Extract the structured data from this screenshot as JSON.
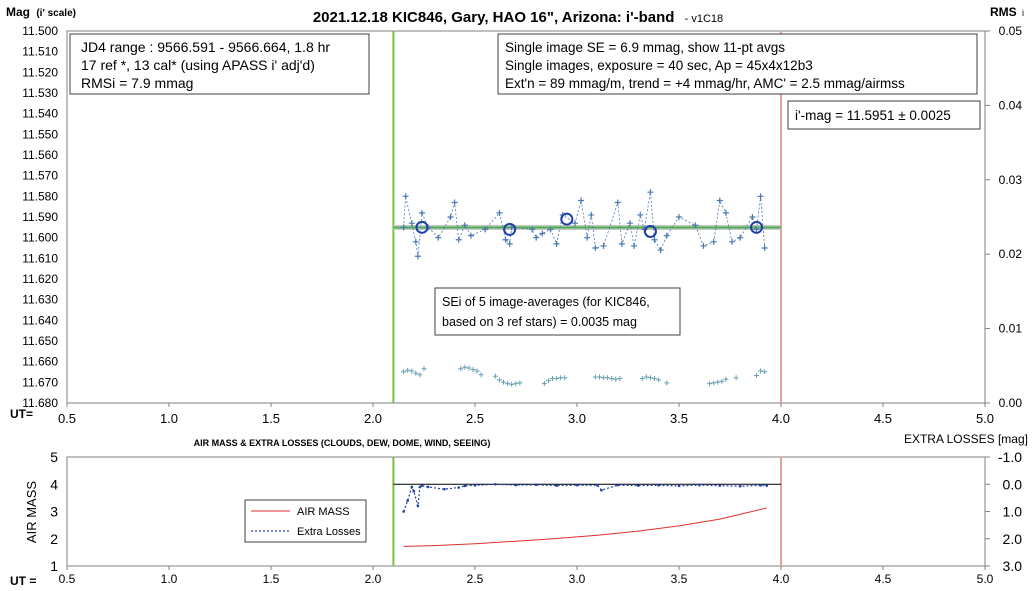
{
  "chart_data": [
    {
      "type": "scatter",
      "title": "2021.12.18 KIC846, Gary, HAO 16\", Arizona: i'-band",
      "version": "- v1C18",
      "ylabel_main": "Mag",
      "ylabel_sub": "(i' scale)",
      "y2label_main": "RMS",
      "y2label_sub": "i",
      "xlabel": "UT=",
      "xlim": [
        0.5,
        5.0
      ],
      "xticks": [
        "0.5",
        "1.0",
        "1.5",
        "2.0",
        "2.5",
        "3.0",
        "3.5",
        "4.0",
        "4.5",
        "5.0"
      ],
      "ylim": [
        11.5,
        11.68
      ],
      "yinverted": true,
      "yticks": [
        "11.500",
        "11.510",
        "11.520",
        "11.530",
        "11.540",
        "11.550",
        "11.560",
        "11.570",
        "11.580",
        "11.590",
        "11.600",
        "11.610",
        "11.620",
        "11.630",
        "11.640",
        "11.650",
        "11.660",
        "11.670",
        "11.680"
      ],
      "y2lim": [
        0.0,
        0.05
      ],
      "y2ticks": [
        "0.00",
        "0.01",
        "0.02",
        "0.03",
        "0.04",
        "0.05"
      ],
      "vlines": [
        {
          "x": 2.1,
          "color": "#7ac142"
        },
        {
          "x": 4.0,
          "color": "#e8a0a0"
        }
      ],
      "hline_fit": {
        "x": [
          2.1,
          4.0
        ],
        "y": 11.5951
      },
      "annotations": {
        "box1": [
          "JD4 range : 9566.591 - 9566.664, 1.8  hr",
          "17 ref *, 13 cal* (using APASS i' adj'd)",
          "RMSi = 7.9 mmag"
        ],
        "box2": [
          "Single image SE = 6.9 mmag, show 11-pt avgs",
          "Single images, exposure = 40 sec, Ap = 45x4x12b3",
          "Ext'n = 89 mmag/m, trend = +4 mmag/hr, AMC' = 2.5 mmag/airmss"
        ],
        "box3": [
          "i'-mag = 11.5951 ± 0.0025"
        ],
        "box4": [
          "SEi of 5 image-averages (for KIC846,",
          "based on 3 ref stars) = 0.0035 mag"
        ]
      },
      "series": [
        {
          "kind": "single_images",
          "x": [
            2.15,
            2.16,
            2.19,
            2.21,
            2.22,
            2.24,
            2.27,
            2.32,
            2.38,
            2.4,
            2.42,
            2.45,
            2.48,
            2.55,
            2.62,
            2.65,
            2.67,
            2.68,
            2.78,
            2.8,
            2.83,
            2.87,
            2.9,
            2.93,
            2.99,
            3.02,
            3.05,
            3.07,
            3.09,
            3.13,
            3.2,
            3.22,
            3.26,
            3.28,
            3.31,
            3.33,
            3.36,
            3.38,
            3.41,
            3.44,
            3.5,
            3.58,
            3.62,
            3.67,
            3.7,
            3.73,
            3.76,
            3.8,
            3.86,
            3.88,
            3.9,
            3.92
          ],
          "values": [
            11.595,
            11.58,
            11.593,
            11.602,
            11.609,
            11.588,
            11.595,
            11.6,
            11.59,
            11.583,
            11.601,
            11.594,
            11.599,
            11.596,
            11.588,
            11.601,
            11.603,
            11.595,
            11.596,
            11.6,
            11.598,
            11.596,
            11.603,
            11.589,
            11.593,
            11.582,
            11.6,
            11.589,
            11.605,
            11.604,
            11.583,
            11.603,
            11.593,
            11.604,
            11.589,
            11.596,
            11.578,
            11.601,
            11.606,
            11.599,
            11.59,
            11.594,
            11.604,
            11.602,
            11.582,
            11.588,
            11.602,
            11.6,
            11.59,
            11.596,
            11.58,
            11.605
          ]
        },
        {
          "kind": "image_averages",
          "x": [
            2.24,
            2.67,
            2.95,
            3.36,
            3.88
          ],
          "values": [
            11.595,
            11.596,
            11.591,
            11.597,
            11.595
          ]
        },
        {
          "kind": "rms",
          "x": [
            2.15,
            2.17,
            2.19,
            2.21,
            2.23,
            2.25,
            2.43,
            2.45,
            2.47,
            2.49,
            2.51,
            2.53,
            2.6,
            2.62,
            2.64,
            2.66,
            2.68,
            2.7,
            2.72,
            2.84,
            2.86,
            2.88,
            2.9,
            2.92,
            2.94,
            3.09,
            3.11,
            3.13,
            3.15,
            3.17,
            3.19,
            3.21,
            3.32,
            3.34,
            3.36,
            3.38,
            3.4,
            3.44,
            3.65,
            3.67,
            3.69,
            3.71,
            3.73,
            3.78,
            3.88,
            3.9,
            3.92
          ],
          "values": [
            0.0042,
            0.0044,
            0.0043,
            0.004,
            0.0038,
            0.0046,
            0.0046,
            0.0048,
            0.0047,
            0.0045,
            0.0043,
            0.0038,
            0.0036,
            0.0031,
            0.0028,
            0.0026,
            0.0025,
            0.0026,
            0.0027,
            0.0026,
            0.003,
            0.0033,
            0.0033,
            0.0034,
            0.0034,
            0.0035,
            0.0035,
            0.0034,
            0.0034,
            0.0033,
            0.0032,
            0.0033,
            0.0033,
            0.0035,
            0.0034,
            0.0033,
            0.0031,
            0.0027,
            0.0026,
            0.0027,
            0.0028,
            0.0029,
            0.0032,
            0.0034,
            0.0037,
            0.0043,
            0.0042
          ]
        }
      ]
    },
    {
      "type": "line",
      "title": "AIR MASS & EXTRA LOSSES (CLOUDS, DEW, DOME, WIND, SEEING)",
      "ylabel": "AIR MASS",
      "y2label": "EXTRA LOSSES [mag]",
      "xlabel": "UT =",
      "xlim": [
        0.5,
        5.0
      ],
      "xticks": [
        "0.5",
        "1.0",
        "1.5",
        "2.0",
        "2.5",
        "3.0",
        "3.5",
        "4.0",
        "4.5",
        "5.0"
      ],
      "ylim": [
        1,
        5
      ],
      "yticks": [
        "1",
        "2",
        "3",
        "4",
        "5"
      ],
      "y2lim": [
        3.0,
        -1.0
      ],
      "y2ticks": [
        "-1.0",
        "0.0",
        "1.0",
        "2.0",
        "3.0"
      ],
      "vlines": [
        {
          "x": 2.1,
          "color": "#7ac142"
        },
        {
          "x": 4.0,
          "color": "#e8a0a0"
        }
      ],
      "hline": {
        "y2": 0.0,
        "x": [
          2.1,
          4.0
        ]
      },
      "legend": [
        "AIR MASS",
        "Extra Losses"
      ],
      "legend_position": "left-center",
      "series": [
        {
          "name": "AIR MASS",
          "color": "#e03030",
          "x": [
            2.15,
            2.3,
            2.5,
            2.7,
            2.9,
            3.1,
            3.3,
            3.5,
            3.7,
            3.93
          ],
          "values": [
            1.72,
            1.75,
            1.82,
            1.91,
            2.01,
            2.13,
            2.28,
            2.47,
            2.72,
            3.13
          ]
        },
        {
          "name": "Extra Losses",
          "color": "#1f3fa8",
          "x": [
            2.15,
            2.17,
            2.19,
            2.2,
            2.22,
            2.23,
            2.24,
            2.27,
            2.35,
            2.42,
            2.45,
            2.5,
            2.6,
            2.7,
            2.8,
            2.9,
            3.0,
            3.1,
            3.12,
            3.2,
            3.3,
            3.4,
            3.5,
            3.6,
            3.7,
            3.8,
            3.9,
            3.93
          ],
          "values": [
            1.0,
            0.6,
            0.1,
            0.25,
            0.8,
            0.1,
            0.05,
            0.1,
            0.18,
            0.12,
            0.06,
            0.04,
            0.0,
            0.03,
            0.02,
            0.05,
            0.03,
            0.04,
            0.22,
            0.03,
            0.05,
            0.04,
            0.06,
            0.03,
            0.05,
            0.07,
            0.04,
            0.05
          ]
        }
      ]
    }
  ],
  "colors": {
    "single": "#4a78b0",
    "average": "#1f3fa8",
    "rms": "#6aa0b0",
    "fit_green": "#4caf50",
    "fit_gray": "#c8c8c8",
    "green_line": "#7ac142",
    "pink_line": "#e8a0a0"
  }
}
